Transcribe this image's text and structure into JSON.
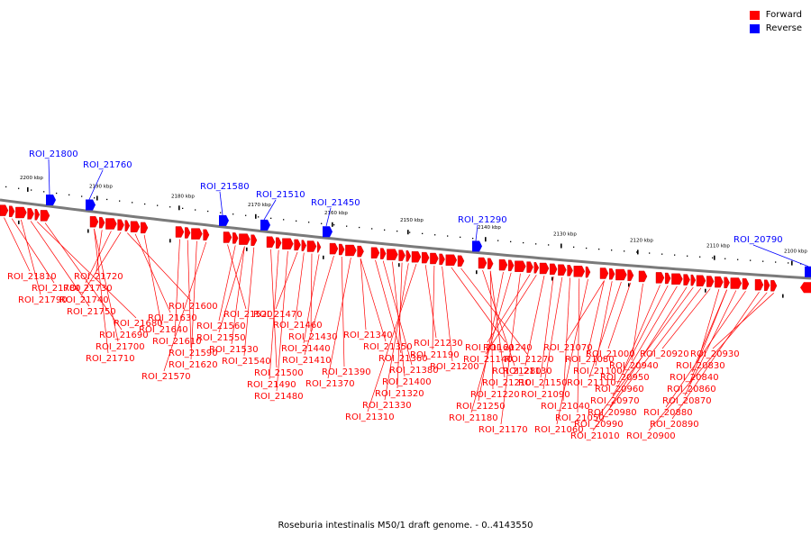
{
  "legend": {
    "forward": {
      "label": "Forward",
      "color": "#ff0000"
    },
    "reverse": {
      "label": "Reverse",
      "color": "#0000ff"
    }
  },
  "caption": "Roseburia intestinalis M50/1 draft genome. - 0..4143550",
  "scale_ticks": [
    "2200 kbp",
    "2190 kbp",
    "2180 kbp",
    "2170 kbp",
    "2160 kbp",
    "2150 kbp",
    "2140 kbp",
    "2130 kbp",
    "2120 kbp",
    "2110 kbp",
    "2100 kbp"
  ],
  "reverse_rois": [
    "ROI_21800",
    "ROI_21760",
    "ROI_21580",
    "ROI_21510",
    "ROI_21450",
    "ROI_21290",
    "ROI_20790"
  ],
  "forward_rois": [
    "ROI_21810",
    "ROI_21780",
    "ROI_21790",
    "ROI_21750",
    "ROI_21680",
    "ROI_21690",
    "ROI_21700",
    "ROI_21710",
    "ROI_21720",
    "ROI_21730",
    "ROI_21740",
    "ROI_21600",
    "ROI_21630",
    "ROI_21640",
    "ROI_21610",
    "ROI_21590",
    "ROI_21620",
    "ROI_21570",
    "ROI_21520",
    "ROI_21560",
    "ROI_21550",
    "ROI_21530",
    "ROI_21540",
    "ROI_21500",
    "ROI_21490",
    "ROI_21480",
    "ROI_21470",
    "ROI_21460",
    "ROI_21430",
    "ROI_21440",
    "ROI_21410",
    "ROI_21390",
    "ROI_21370",
    "ROI_21340",
    "ROI_21350",
    "ROI_21360",
    "ROI_21380",
    "ROI_21400",
    "ROI_21320",
    "ROI_21330",
    "ROI_21310",
    "ROI_21230",
    "ROI_21190",
    "ROI_21200",
    "ROI_21240",
    "ROI_21270",
    "ROI_21280",
    "ROI_21210",
    "ROI_21220",
    "ROI_21250",
    "ROI_21180",
    "ROI_21170",
    "ROI_21160",
    "ROI_21140",
    "ROI_21130",
    "ROI_21150",
    "ROI_21090",
    "ROI_21040",
    "ROI_21050",
    "ROI_21060",
    "ROI_21070",
    "ROI_21080",
    "ROI_21100",
    "ROI_21110",
    "ROI_21000",
    "ROI_20940",
    "ROI_20950",
    "ROI_20960",
    "ROI_20970",
    "ROI_20980",
    "ROI_20990",
    "ROI_21010",
    "ROI_20920",
    "ROI_20830",
    "ROI_20840",
    "ROI_20860",
    "ROI_20870",
    "ROI_20880",
    "ROI_20890",
    "ROI_20900",
    "ROI_20930"
  ]
}
